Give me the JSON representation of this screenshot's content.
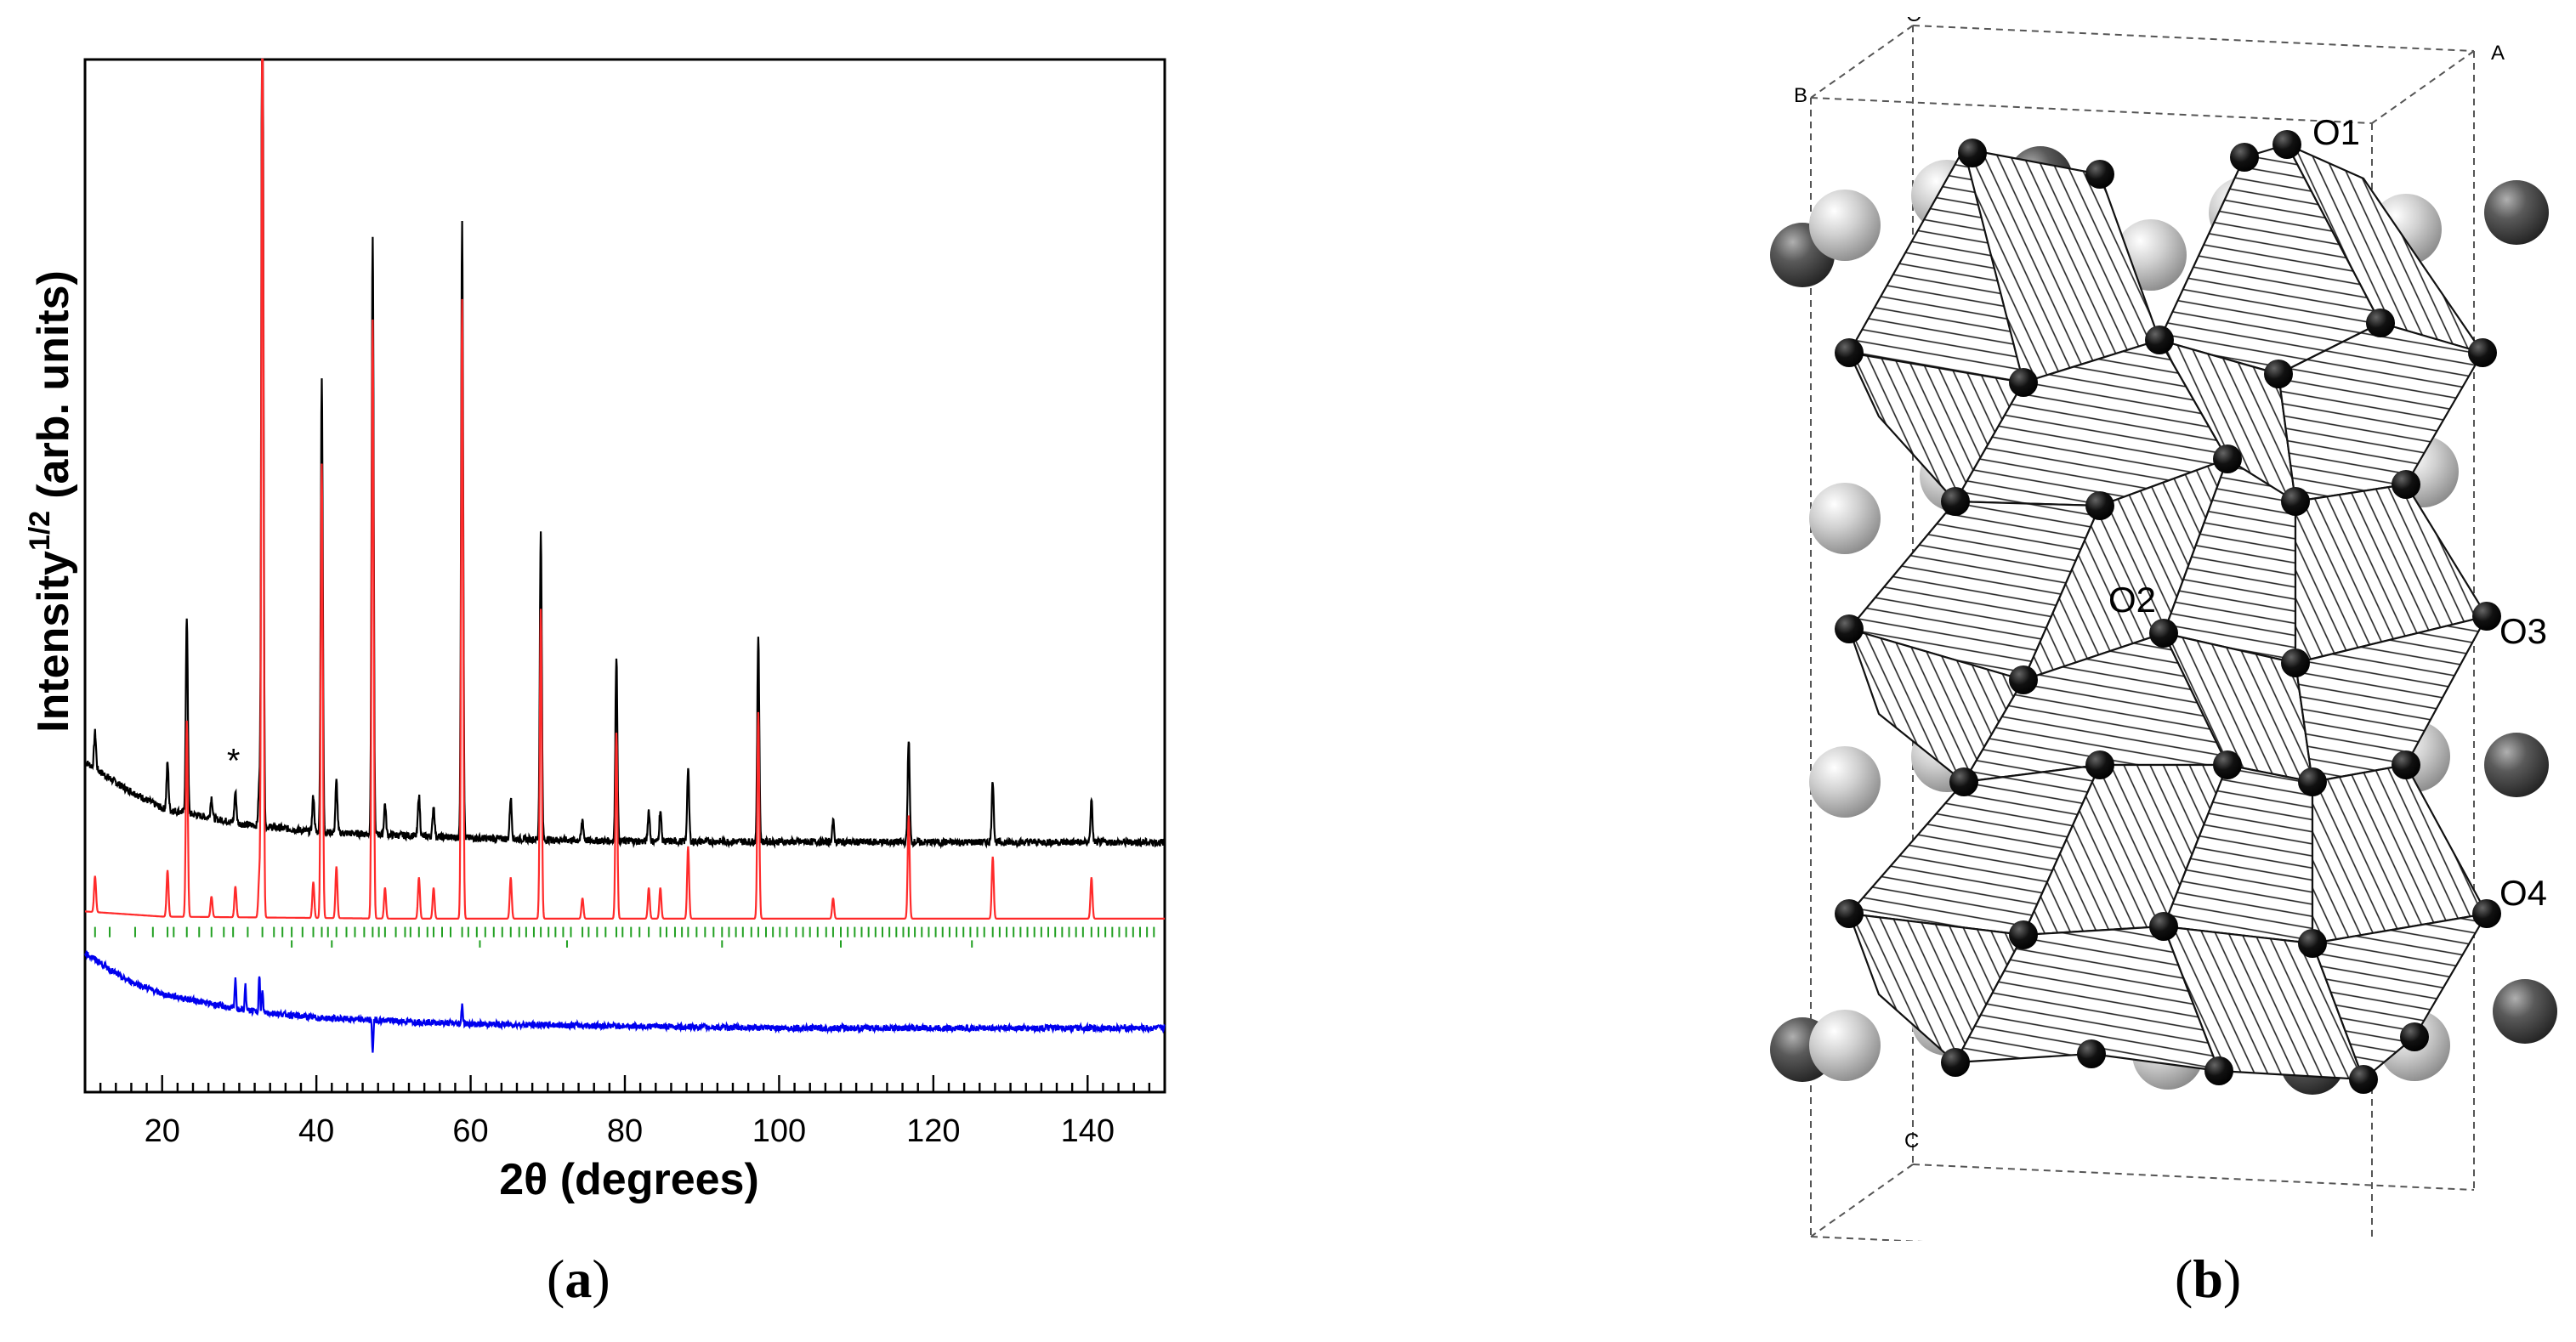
{
  "panels": {
    "a_prefix": "(",
    "a_letter": "a",
    "a_suffix": ")",
    "b_prefix": "(",
    "b_letter": "b",
    "b_suffix": ")"
  },
  "colors": {
    "observed": "#000000",
    "calculated": "#ff2a2a",
    "difference": "#0000ee",
    "bragg": "#22a022",
    "axis": "#000000"
  },
  "chart_data": {
    "type": "line",
    "xlabel": "2θ (degrees)",
    "ylabel": "Intensity",
    "ylabel_superscript": "1/2",
    "ylabel_units": "(arb. units)",
    "xlim": [
      10,
      150
    ],
    "ylim": [
      0,
      100
    ],
    "xticks": [
      20,
      40,
      60,
      80,
      100,
      120,
      140
    ],
    "tick_labels": [
      "20",
      "40",
      "60",
      "80",
      "100",
      "120",
      "140"
    ],
    "impurity_marker": {
      "label": "*",
      "x": 29.5,
      "y": 31
    },
    "series": [
      {
        "name": "observed",
        "baseline": 24.2,
        "background": [
          [
            10,
            32
          ],
          [
            15,
            29.5
          ],
          [
            20,
            27.5
          ],
          [
            30,
            26
          ],
          [
            40,
            25.2
          ],
          [
            60,
            24.6
          ],
          [
            80,
            24.3
          ],
          [
            120,
            24.2
          ],
          [
            150,
            24.2
          ]
        ]
      },
      {
        "name": "calculated",
        "baseline": 16.8,
        "background": [
          [
            10,
            17.5
          ],
          [
            20,
            17
          ],
          [
            50,
            16.8
          ],
          [
            150,
            16.8
          ]
        ]
      },
      {
        "name": "difference",
        "baseline": 6,
        "background": [
          [
            10,
            13.5
          ],
          [
            15,
            11
          ],
          [
            20,
            9.5
          ],
          [
            30,
            8
          ],
          [
            40,
            7.2
          ],
          [
            60,
            6.6
          ],
          [
            100,
            6.2
          ],
          [
            150,
            6.2
          ]
        ]
      }
    ],
    "peaks": [
      {
        "x": 11.3,
        "h": 3.5
      },
      {
        "x": 20.7,
        "h": 4.5
      },
      {
        "x": 23.2,
        "h": 19
      },
      {
        "x": 26.4,
        "h": 2
      },
      {
        "x": 29.5,
        "h": 3
      },
      {
        "x": 32.6,
        "h": 4
      },
      {
        "x": 33.0,
        "h": 92
      },
      {
        "x": 39.6,
        "h": 3.5
      },
      {
        "x": 40.7,
        "h": 44
      },
      {
        "x": 42.6,
        "h": 5
      },
      {
        "x": 47.3,
        "h": 58
      },
      {
        "x": 48.9,
        "h": 3
      },
      {
        "x": 53.3,
        "h": 4
      },
      {
        "x": 55.2,
        "h": 3
      },
      {
        "x": 58.9,
        "h": 60
      },
      {
        "x": 65.2,
        "h": 4
      },
      {
        "x": 69.1,
        "h": 30
      },
      {
        "x": 74.5,
        "h": 2
      },
      {
        "x": 78.9,
        "h": 18
      },
      {
        "x": 83.1,
        "h": 3
      },
      {
        "x": 84.6,
        "h": 3
      },
      {
        "x": 88.2,
        "h": 7
      },
      {
        "x": 97.3,
        "h": 20
      },
      {
        "x": 107.0,
        "h": 2
      },
      {
        "x": 116.8,
        "h": 10
      },
      {
        "x": 127.7,
        "h": 6
      },
      {
        "x": 140.5,
        "h": 4
      }
    ],
    "difference_spikes": [
      {
        "x": 29.5,
        "d": 3
      },
      {
        "x": 30.8,
        "d": 2.5
      },
      {
        "x": 32.6,
        "d": 3.5
      },
      {
        "x": 33.0,
        "d": 2
      },
      {
        "x": 47.3,
        "d": -3
      },
      {
        "x": 58.9,
        "d": 2
      }
    ],
    "bragg_ticks": [
      11.3,
      13.2,
      16.5,
      18.8,
      20.7,
      21.5,
      23.2,
      24.8,
      26.4,
      28.0,
      29.2,
      31.1,
      33.0,
      34.5,
      35.6,
      36.8,
      38.2,
      39.6,
      40.7,
      41.5,
      42.6,
      43.9,
      45.0,
      46.2,
      47.3,
      48.1,
      48.9,
      50.3,
      51.5,
      52.2,
      53.3,
      54.4,
      55.2,
      56.3,
      57.4,
      58.9,
      59.7,
      60.8,
      61.9,
      63.0,
      64.1,
      65.2,
      66.3,
      67.2,
      68.2,
      69.1,
      70.1,
      71.0,
      72.0,
      73.0,
      74.5,
      75.3,
      76.4,
      77.5,
      78.9,
      79.7,
      80.8,
      81.9,
      83.1,
      84.6,
      85.4,
      86.5,
      87.4,
      88.2,
      89.3,
      90.4,
      91.5,
      92.6,
      93.5,
      94.4,
      95.3,
      96.4,
      97.3,
      98.3,
      99.2,
      100.1,
      101.0,
      102.2,
      103.1,
      104.0,
      105.0,
      106.1,
      107.0,
      108.0,
      108.9,
      109.8,
      110.7,
      111.6,
      112.5,
      113.4,
      114.3,
      115.2,
      116.1,
      116.8,
      117.6,
      118.5,
      119.4,
      120.3,
      121.2,
      122.1,
      123.0,
      123.9,
      124.8,
      125.7,
      126.6,
      127.7,
      128.6,
      129.5,
      130.4,
      131.3,
      132.2,
      133.1,
      134.0,
      134.9,
      135.8,
      136.7,
      137.6,
      138.5,
      139.4,
      140.5,
      141.4,
      142.3,
      143.2,
      144.1,
      145.0,
      145.9,
      146.8,
      147.7,
      148.6
    ],
    "bragg_ticks_second_row": [
      36.8,
      42.0,
      61.2,
      72.5,
      92.6,
      108.0,
      125.0
    ]
  },
  "structure": {
    "cell_corner_labels": [
      "O",
      "A",
      "B",
      "C"
    ],
    "atom_labels": [
      "O1",
      "O2",
      "O3",
      "O4"
    ]
  }
}
